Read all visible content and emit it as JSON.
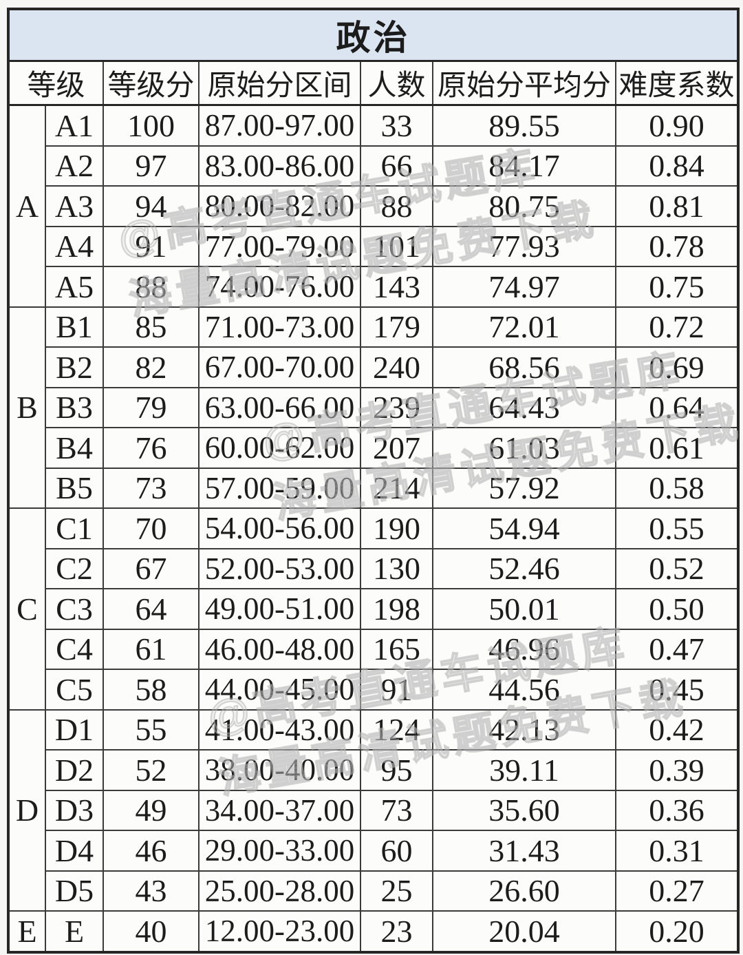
{
  "title": "政治",
  "table": {
    "headers": [
      "等级",
      "等级分",
      "原始分区间",
      "人数",
      "原始分平均分",
      "难度系数"
    ],
    "groups": [
      {
        "letter": "A",
        "rows": [
          {
            "grade": "A1",
            "grade_score": "100",
            "raw_range": "87.00-97.00",
            "count": "33",
            "raw_avg": "89.55",
            "difficulty": "0.90"
          },
          {
            "grade": "A2",
            "grade_score": "97",
            "raw_range": "83.00-86.00",
            "count": "66",
            "raw_avg": "84.17",
            "difficulty": "0.84"
          },
          {
            "grade": "A3",
            "grade_score": "94",
            "raw_range": "80.00-82.00",
            "count": "88",
            "raw_avg": "80.75",
            "difficulty": "0.81"
          },
          {
            "grade": "A4",
            "grade_score": "91",
            "raw_range": "77.00-79.00",
            "count": "101",
            "raw_avg": "77.93",
            "difficulty": "0.78"
          },
          {
            "grade": "A5",
            "grade_score": "88",
            "raw_range": "74.00-76.00",
            "count": "143",
            "raw_avg": "74.97",
            "difficulty": "0.75"
          }
        ]
      },
      {
        "letter": "B",
        "rows": [
          {
            "grade": "B1",
            "grade_score": "85",
            "raw_range": "71.00-73.00",
            "count": "179",
            "raw_avg": "72.01",
            "difficulty": "0.72"
          },
          {
            "grade": "B2",
            "grade_score": "82",
            "raw_range": "67.00-70.00",
            "count": "240",
            "raw_avg": "68.56",
            "difficulty": "0.69"
          },
          {
            "grade": "B3",
            "grade_score": "79",
            "raw_range": "63.00-66.00",
            "count": "239",
            "raw_avg": "64.43",
            "difficulty": "0.64"
          },
          {
            "grade": "B4",
            "grade_score": "76",
            "raw_range": "60.00-62.00",
            "count": "207",
            "raw_avg": "61.03",
            "difficulty": "0.61"
          },
          {
            "grade": "B5",
            "grade_score": "73",
            "raw_range": "57.00-59.00",
            "count": "214",
            "raw_avg": "57.92",
            "difficulty": "0.58"
          }
        ]
      },
      {
        "letter": "C",
        "rows": [
          {
            "grade": "C1",
            "grade_score": "70",
            "raw_range": "54.00-56.00",
            "count": "190",
            "raw_avg": "54.94",
            "difficulty": "0.55"
          },
          {
            "grade": "C2",
            "grade_score": "67",
            "raw_range": "52.00-53.00",
            "count": "130",
            "raw_avg": "52.46",
            "difficulty": "0.52"
          },
          {
            "grade": "C3",
            "grade_score": "64",
            "raw_range": "49.00-51.00",
            "count": "198",
            "raw_avg": "50.01",
            "difficulty": "0.50"
          },
          {
            "grade": "C4",
            "grade_score": "61",
            "raw_range": "46.00-48.00",
            "count": "165",
            "raw_avg": "46.96",
            "difficulty": "0.47"
          },
          {
            "grade": "C5",
            "grade_score": "58",
            "raw_range": "44.00-45.00",
            "count": "91",
            "raw_avg": "44.56",
            "difficulty": "0.45"
          }
        ]
      },
      {
        "letter": "D",
        "rows": [
          {
            "grade": "D1",
            "grade_score": "55",
            "raw_range": "41.00-43.00",
            "count": "124",
            "raw_avg": "42.13",
            "difficulty": "0.42"
          },
          {
            "grade": "D2",
            "grade_score": "52",
            "raw_range": "38.00-40.00",
            "count": "95",
            "raw_avg": "39.11",
            "difficulty": "0.39"
          },
          {
            "grade": "D3",
            "grade_score": "49",
            "raw_range": "34.00-37.00",
            "count": "73",
            "raw_avg": "35.60",
            "difficulty": "0.36"
          },
          {
            "grade": "D4",
            "grade_score": "46",
            "raw_range": "29.00-33.00",
            "count": "60",
            "raw_avg": "31.43",
            "difficulty": "0.31"
          },
          {
            "grade": "D5",
            "grade_score": "43",
            "raw_range": "25.00-28.00",
            "count": "25",
            "raw_avg": "26.60",
            "difficulty": "0.27"
          }
        ]
      },
      {
        "letter": "E",
        "rows": [
          {
            "grade": "E",
            "grade_score": "40",
            "raw_range": "12.00-23.00",
            "count": "23",
            "raw_avg": "20.04",
            "difficulty": "0.20"
          }
        ]
      }
    ]
  },
  "watermark": {
    "line1": "@高考直通车试题库",
    "line2": "海量高清试题免费下载"
  },
  "colors": {
    "title_background": "#dbe5f2",
    "cell_background": "#fcfcfb",
    "border": "#3a3a3a",
    "text": "#1c1c1c",
    "watermark": "#c8c8c8"
  }
}
